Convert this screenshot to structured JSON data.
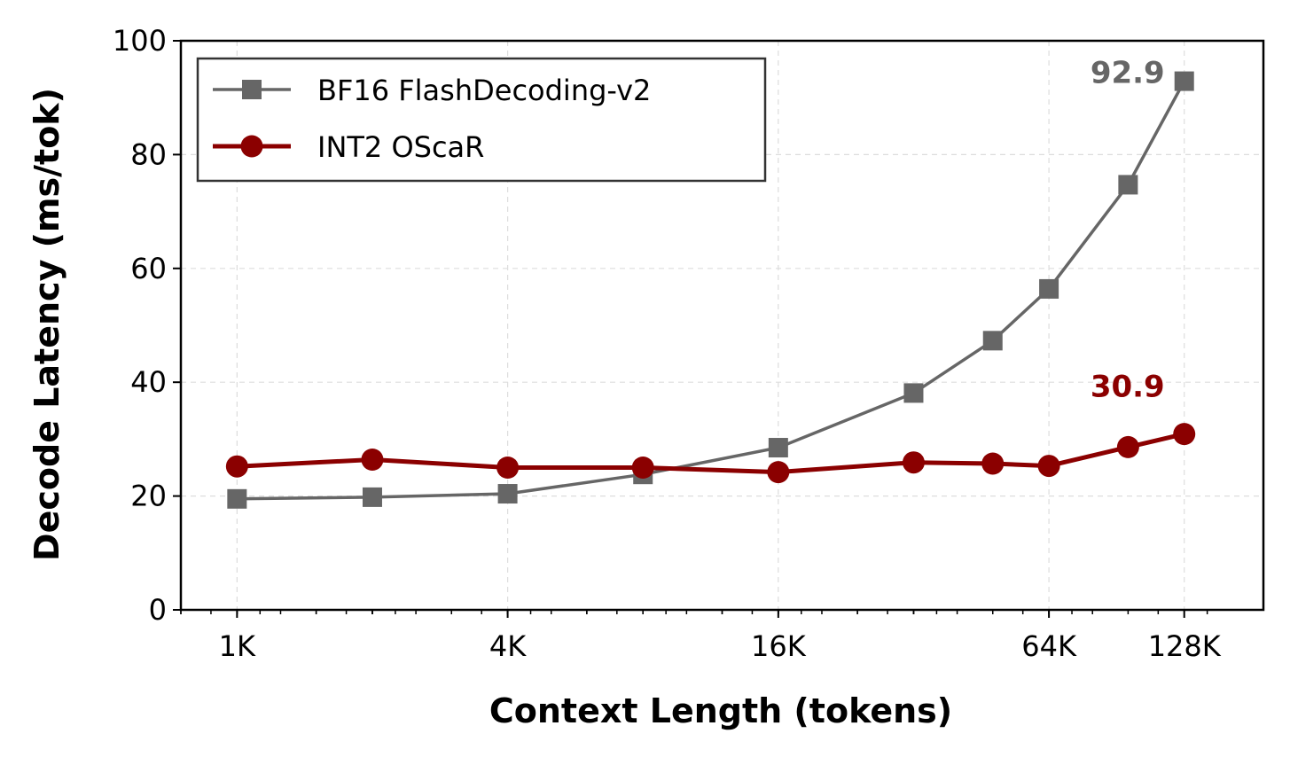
{
  "chart_data": {
    "type": "line",
    "xlabel": "Context Length (tokens)",
    "ylabel": "Decode Latency (ms/tok)",
    "x_scale": "log2",
    "xlim": [
      768,
      196608
    ],
    "ylim": [
      0,
      100
    ],
    "x_ticks": [
      1024,
      4096,
      16384,
      65536,
      131072
    ],
    "x_tick_labels": [
      "1K",
      "4K",
      "16K",
      "64K",
      "128K"
    ],
    "y_ticks": [
      0,
      20,
      40,
      60,
      80,
      100
    ],
    "y_tick_labels": [
      "0",
      "20",
      "40",
      "60",
      "80",
      "100"
    ],
    "grid": true,
    "legend_position": "upper-left",
    "series": [
      {
        "name": "BF16 FlashDecoding-v2",
        "color": "#666666",
        "marker": "square",
        "x": [
          1024,
          2048,
          4096,
          8192,
          16384,
          32768,
          49152,
          65536,
          98304,
          131072
        ],
        "y": [
          19.5,
          19.8,
          20.4,
          23.8,
          28.5,
          38.1,
          47.3,
          56.4,
          74.7,
          92.9
        ]
      },
      {
        "name": "INT2 OScaR",
        "color": "#8b0000",
        "marker": "circle",
        "x": [
          1024,
          2048,
          4096,
          8192,
          16384,
          32768,
          49152,
          65536,
          98304,
          131072
        ],
        "y": [
          25.2,
          26.4,
          25.0,
          25.0,
          24.2,
          25.9,
          25.7,
          25.3,
          28.6,
          30.9
        ]
      }
    ],
    "annotations": [
      {
        "text": "92.9",
        "series": 0,
        "color": "#666666"
      },
      {
        "text": "30.9",
        "series": 1,
        "color": "#8b0000"
      }
    ]
  }
}
